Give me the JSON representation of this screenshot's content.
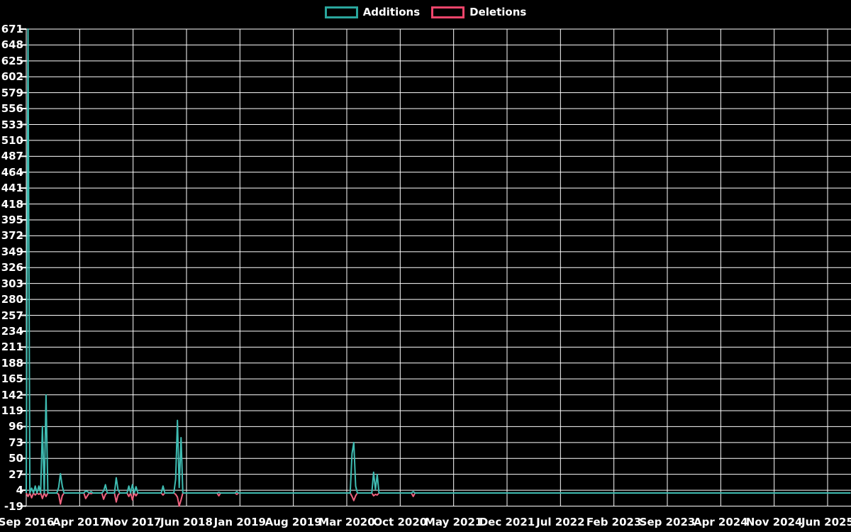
{
  "page": {
    "background": "#000000",
    "text_color": "#ffffff",
    "grid_color": "#ffffff"
  },
  "legend": {
    "position": "top-center",
    "items": [
      {
        "label": "Additions",
        "color": "#2aa69d"
      },
      {
        "label": "Deletions",
        "color": "#f0456b"
      }
    ]
  },
  "chart_data": {
    "type": "line",
    "title": "",
    "xlabel": "",
    "ylabel": "",
    "grid": true,
    "background": "#000000",
    "legend_position": "top-center",
    "x_axis": {
      "unit": "weeks since first tick",
      "n_weeks": 458,
      "tick_labels": [
        "Sep 2016",
        "Apr 2017",
        "Nov 2017",
        "Jun 2018",
        "Jan 2019",
        "Aug 2019",
        "Mar 2020",
        "Oct 2020",
        "May 2021",
        "Dec 2021",
        "Jul 2022",
        "Feb 2023",
        "Sep 2023",
        "Apr 2024",
        "Nov 2024",
        "Jun 2025"
      ]
    },
    "y_axis": {
      "range": [
        -19,
        671
      ],
      "tick_labels": [
        671,
        648,
        625,
        602,
        579,
        556,
        533,
        510,
        487,
        464,
        441,
        418,
        395,
        372,
        349,
        326,
        303,
        280,
        257,
        234,
        211,
        188,
        165,
        142,
        119,
        96,
        73,
        50,
        27,
        4,
        -19
      ]
    },
    "series": [
      {
        "name": "Additions",
        "line_color": "#3fbcb2",
        "default_value": 0,
        "points_week_value": [
          [
            1,
            671
          ],
          [
            3,
            7
          ],
          [
            5,
            10
          ],
          [
            7,
            10
          ],
          [
            9,
            96
          ],
          [
            11,
            142
          ],
          [
            18,
            8
          ],
          [
            19,
            28
          ],
          [
            20,
            10
          ],
          [
            33,
            3
          ],
          [
            34,
            2
          ],
          [
            36,
            2
          ],
          [
            43,
            3
          ],
          [
            44,
            12
          ],
          [
            50,
            22
          ],
          [
            51,
            5
          ],
          [
            57,
            10
          ],
          [
            59,
            12
          ],
          [
            61,
            9
          ],
          [
            76,
            10
          ],
          [
            83,
            20
          ],
          [
            84,
            105
          ],
          [
            85,
            8
          ],
          [
            86,
            80
          ],
          [
            107,
            1
          ],
          [
            117,
            2
          ],
          [
            181,
            57
          ],
          [
            182,
            73
          ],
          [
            183,
            10
          ],
          [
            193,
            30
          ],
          [
            194,
            5
          ],
          [
            195,
            27
          ],
          [
            215,
            2
          ]
        ]
      },
      {
        "name": "Deletions",
        "line_color": "#f2627f",
        "default_value": 0,
        "points_week_value": [
          [
            1,
            -5
          ],
          [
            3,
            -7
          ],
          [
            5,
            -3
          ],
          [
            7,
            -2
          ],
          [
            9,
            -8
          ],
          [
            11,
            -5
          ],
          [
            18,
            -2
          ],
          [
            19,
            -16
          ],
          [
            20,
            -4
          ],
          [
            33,
            -8
          ],
          [
            34,
            -4
          ],
          [
            36,
            -1
          ],
          [
            43,
            -9
          ],
          [
            44,
            -2
          ],
          [
            50,
            -13
          ],
          [
            51,
            -3
          ],
          [
            57,
            -5
          ],
          [
            59,
            -10
          ],
          [
            61,
            -4
          ],
          [
            76,
            -3
          ],
          [
            83,
            -2
          ],
          [
            84,
            -6
          ],
          [
            85,
            -19
          ],
          [
            86,
            -10
          ],
          [
            107,
            -4
          ],
          [
            117,
            -2
          ],
          [
            181,
            -5
          ],
          [
            182,
            -11
          ],
          [
            183,
            -4
          ],
          [
            193,
            -4
          ],
          [
            194,
            -2
          ],
          [
            195,
            -3
          ],
          [
            215,
            -5
          ]
        ]
      }
    ]
  }
}
